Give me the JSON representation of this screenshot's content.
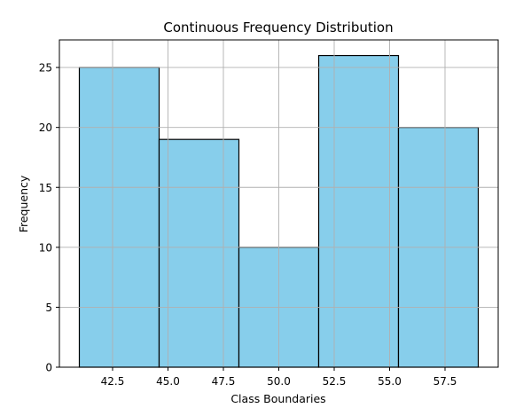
{
  "chart_data": {
    "type": "bar",
    "title": "Continuous Frequency Distribution",
    "xlabel": "Class Boundaries",
    "ylabel": "Frequency",
    "bins": [
      {
        "from": 41.0,
        "to": 44.6,
        "value": 25
      },
      {
        "from": 44.6,
        "to": 48.2,
        "value": 19
      },
      {
        "from": 48.2,
        "to": 51.8,
        "value": 10
      },
      {
        "from": 51.8,
        "to": 55.4,
        "value": 26
      },
      {
        "from": 55.4,
        "to": 59.0,
        "value": 20
      }
    ],
    "xlim": [
      40.1,
      59.9
    ],
    "ylim": [
      0,
      27.3
    ],
    "xticks": [
      42.5,
      45.0,
      47.5,
      50.0,
      52.5,
      55.0,
      57.5
    ],
    "xtick_labels": [
      "42.5",
      "45.0",
      "47.5",
      "50.0",
      "52.5",
      "55.0",
      "57.5"
    ],
    "yticks": [
      0,
      5,
      10,
      15,
      20,
      25
    ],
    "ytick_labels": [
      "0",
      "5",
      "10",
      "15",
      "20",
      "25"
    ],
    "bar_color": "#87CEEB",
    "edge_color": "#000000",
    "grid": true
  }
}
